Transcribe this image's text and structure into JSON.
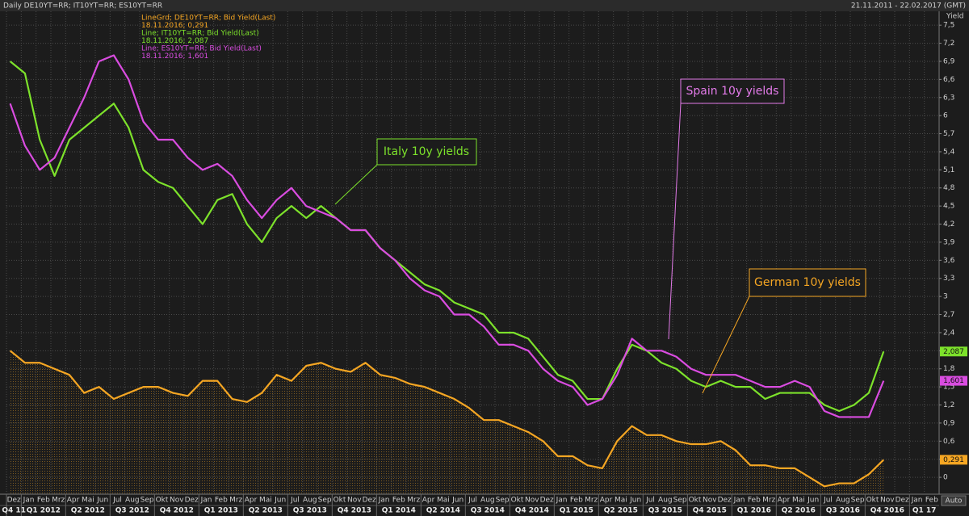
{
  "chart_data": {
    "type": "line",
    "title": "Daily DE10YT=RR; IT10YT=RR; ES10YT=RR",
    "date_range": "21.11.2011 - 22.02.2017 (GMT)",
    "y_label": "Yield",
    "categories": [
      "Dez",
      "Jan",
      "Feb",
      "Mrz",
      "Apr",
      "Mai",
      "Jun",
      "Jul",
      "Aug",
      "Sep",
      "Okt",
      "Nov",
      "Dez",
      "Jan",
      "Feb",
      "Mrz",
      "Apr",
      "Mai",
      "Jun",
      "Jul",
      "Aug",
      "Sep",
      "Okt",
      "Nov",
      "Dez",
      "Jan",
      "Feb",
      "Mrz",
      "Apr",
      "Mai",
      "Jun",
      "Jul",
      "Aug",
      "Sep",
      "Okt",
      "Nov",
      "Dez",
      "Jan",
      "Feb",
      "Mrz",
      "Apr",
      "Mai",
      "Jun",
      "Jul",
      "Aug",
      "Sep",
      "Okt",
      "Nov",
      "Dez",
      "Jan",
      "Feb",
      "Mrz",
      "Apr",
      "Mai",
      "Jun",
      "Jul",
      "Aug",
      "Sep",
      "Okt",
      "Nov",
      "Dez",
      "Jan",
      "Feb"
    ],
    "quarters": [
      "Q4 11",
      "Q1 2012",
      "Q2 2012",
      "Q3 2012",
      "Q4 2012",
      "Q1 2013",
      "Q2 2013",
      "Q3 2013",
      "Q4 2013",
      "Q1 2014",
      "Q2 2014",
      "Q3 2014",
      "Q4 2014",
      "Q1 2015",
      "Q2 2015",
      "Q3 2015",
      "Q4 2015",
      "Q1 2016",
      "Q2 2016",
      "Q3 2016",
      "Q4 2016",
      "Q1 17"
    ],
    "series": [
      {
        "name": "LineGrd; DE10YT=RR; Bid Yield(Last)",
        "legend_value": "18.11.2016; 0,291",
        "color": "#f5a623",
        "area": true,
        "values": [
          2.1,
          1.9,
          1.9,
          1.8,
          1.7,
          1.4,
          1.5,
          1.3,
          1.4,
          1.5,
          1.5,
          1.4,
          1.35,
          1.6,
          1.6,
          1.3,
          1.25,
          1.4,
          1.7,
          1.6,
          1.85,
          1.9,
          1.8,
          1.75,
          1.9,
          1.7,
          1.65,
          1.55,
          1.5,
          1.4,
          1.3,
          1.15,
          0.95,
          0.95,
          0.85,
          0.75,
          0.6,
          0.35,
          0.35,
          0.2,
          0.15,
          0.6,
          0.85,
          0.7,
          0.7,
          0.6,
          0.55,
          0.55,
          0.6,
          0.45,
          0.2,
          0.2,
          0.15,
          0.15,
          0.0,
          -0.15,
          -0.1,
          -0.1,
          0.05,
          0.291,
          null,
          null,
          null
        ],
        "value_labels": [
          null,
          null,
          null,
          null,
          null,
          null,
          null,
          null,
          null,
          null,
          null,
          null,
          null,
          null,
          null,
          null,
          null,
          null,
          null,
          null,
          null,
          null,
          null,
          null,
          null,
          null,
          null,
          null,
          null,
          null,
          null,
          null,
          null,
          null,
          null,
          null,
          null,
          null,
          null,
          null,
          null,
          null,
          null,
          null,
          null,
          null,
          null,
          null,
          null,
          null,
          null,
          null,
          null,
          null,
          null,
          null,
          null,
          null,
          null,
          "0,291",
          null,
          null,
          null
        ]
      },
      {
        "name": "Line; IT10YT=RR; Bid Yield(Last)",
        "legend_value": "18.11.2016; 2,087",
        "color": "#7de22b",
        "values": [
          6.9,
          6.7,
          5.6,
          5.0,
          5.6,
          5.8,
          6.0,
          6.2,
          5.8,
          5.1,
          4.9,
          4.8,
          4.5,
          4.2,
          4.6,
          4.7,
          4.2,
          3.9,
          4.3,
          4.5,
          4.3,
          4.5,
          4.3,
          4.1,
          4.1,
          3.8,
          3.6,
          3.4,
          3.2,
          3.1,
          2.9,
          2.8,
          2.7,
          2.4,
          2.4,
          2.3,
          2.0,
          1.7,
          1.6,
          1.3,
          1.3,
          1.8,
          2.2,
          2.1,
          1.9,
          1.8,
          1.6,
          1.5,
          1.6,
          1.5,
          1.5,
          1.3,
          1.4,
          1.4,
          1.4,
          1.2,
          1.1,
          1.2,
          1.4,
          2.087,
          null,
          null,
          null
        ],
        "value_labels": [
          null,
          null,
          null,
          null,
          null,
          null,
          null,
          null,
          null,
          null,
          null,
          null,
          null,
          null,
          null,
          null,
          null,
          null,
          null,
          null,
          null,
          null,
          null,
          null,
          null,
          null,
          null,
          null,
          null,
          null,
          null,
          null,
          null,
          null,
          null,
          null,
          null,
          null,
          null,
          null,
          null,
          null,
          null,
          null,
          null,
          null,
          null,
          null,
          null,
          null,
          null,
          null,
          null,
          null,
          null,
          null,
          null,
          null,
          null,
          "2,087",
          null,
          null,
          null
        ]
      },
      {
        "name": "Line; ES10YT=RR; Bid Yield(Last)",
        "legend_value": "18.11.2016; 1,601",
        "color": "#d94ce0",
        "values": [
          6.2,
          5.5,
          5.1,
          5.3,
          5.8,
          6.3,
          6.9,
          7.0,
          6.6,
          5.9,
          5.6,
          5.6,
          5.3,
          5.1,
          5.2,
          5.0,
          4.6,
          4.3,
          4.6,
          4.8,
          4.5,
          4.4,
          4.3,
          4.1,
          4.1,
          3.8,
          3.6,
          3.3,
          3.1,
          3.0,
          2.7,
          2.7,
          2.5,
          2.2,
          2.2,
          2.1,
          1.8,
          1.6,
          1.5,
          1.2,
          1.3,
          1.7,
          2.3,
          2.1,
          2.1,
          2.0,
          1.8,
          1.7,
          1.7,
          1.7,
          1.6,
          1.5,
          1.5,
          1.6,
          1.5,
          1.1,
          1.0,
          1.0,
          1.0,
          1.601,
          null,
          null,
          null
        ],
        "value_labels": [
          null,
          null,
          null,
          null,
          null,
          null,
          null,
          null,
          null,
          null,
          null,
          null,
          null,
          null,
          null,
          null,
          null,
          null,
          null,
          null,
          null,
          null,
          null,
          null,
          null,
          null,
          null,
          null,
          null,
          null,
          null,
          null,
          null,
          null,
          null,
          null,
          null,
          null,
          null,
          null,
          null,
          null,
          null,
          null,
          null,
          null,
          null,
          null,
          null,
          null,
          null,
          null,
          null,
          null,
          null,
          null,
          null,
          null,
          null,
          "1,601",
          null,
          null,
          null
        ]
      }
    ],
    "ylim": [
      -0.28,
      7.73
    ],
    "yticks": [
      0,
      {
        "value": 0.3,
        "label": "0,3"
      },
      {
        "value": 0.6,
        "label": "0,6"
      },
      {
        "value": 0.9,
        "label": "0,9"
      },
      {
        "value": 1.2,
        "label": "1,2"
      },
      {
        "value": 1.5,
        "label": "1,5"
      },
      {
        "value": 1.8,
        "label": "1,8"
      },
      {
        "value": 2.1,
        "label": "2,1"
      },
      {
        "value": 2.4,
        "label": "2,4"
      },
      {
        "value": 2.7,
        "label": "2,7"
      },
      3,
      {
        "value": 3.3,
        "label": "3,3"
      },
      {
        "value": 3.6,
        "label": "3,6"
      },
      {
        "value": 3.9,
        "label": "3,9"
      },
      {
        "value": 4.2,
        "label": "4,2"
      },
      {
        "value": 4.5,
        "label": "4,5"
      },
      {
        "value": 4.8,
        "label": "4,8"
      },
      {
        "value": 5.1,
        "label": "5,1"
      },
      {
        "value": 5.4,
        "label": "5,4"
      },
      {
        "value": 5.7,
        "label": "5,7"
      },
      6,
      {
        "value": 6.3,
        "label": "6,3"
      },
      {
        "value": 6.6,
        "label": "6,6"
      },
      {
        "value": 6.9,
        "label": "6,9"
      },
      {
        "value": 7.2,
        "label": "7,2"
      },
      {
        "value": 7.5,
        "label": "7,5"
      }
    ],
    "grid": true,
    "annotations": [
      {
        "text": "Italy 10y yields",
        "color": "#7de22b"
      },
      {
        "text": "Spain 10y yields",
        "color": "#e27ae8"
      },
      {
        "text": "German 10y yields",
        "color": "#f5a623"
      }
    ]
  },
  "ui": {
    "auto": "Auto"
  }
}
